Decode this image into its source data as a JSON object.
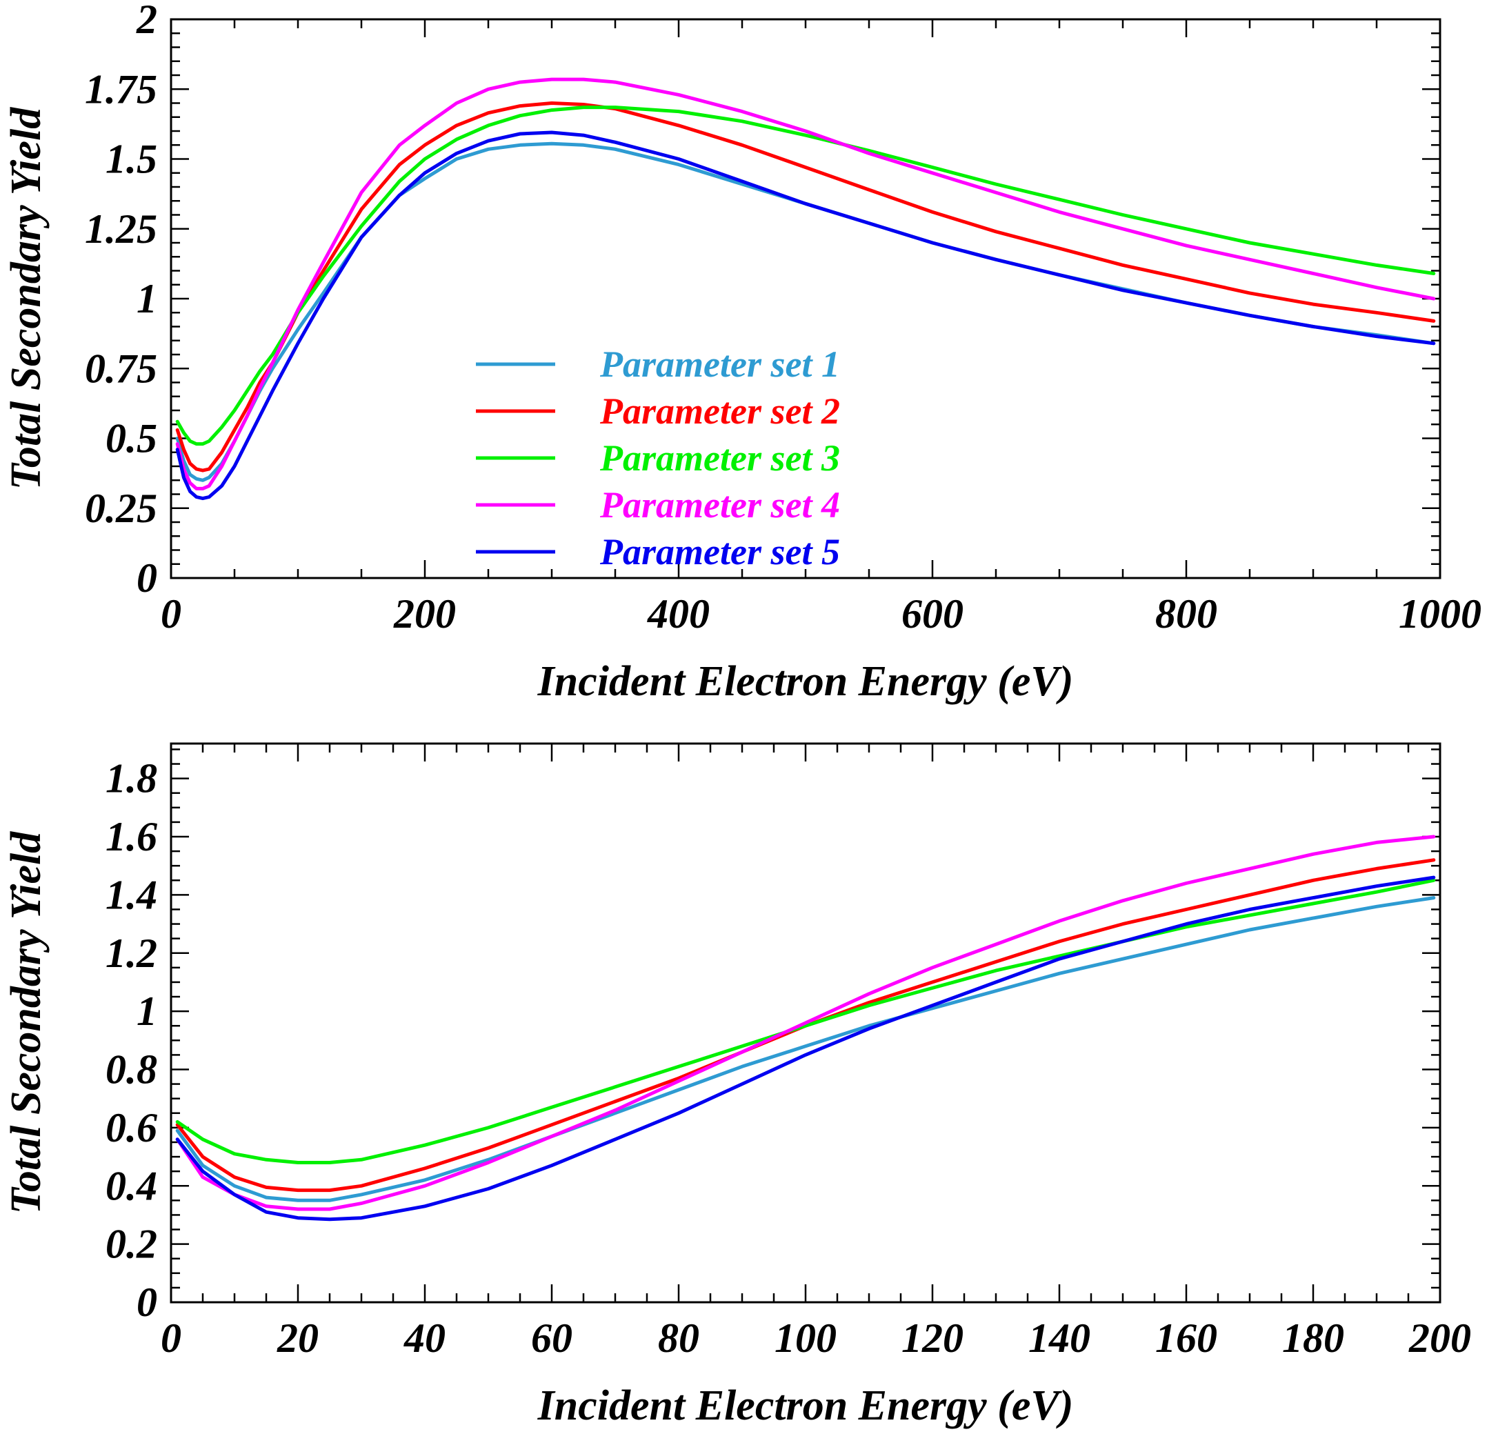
{
  "chart_data": [
    {
      "type": "line",
      "xlabel": "Incident Electron Energy (eV)",
      "ylabel": "Total Secondary Yield",
      "xlim": [
        0,
        1000
      ],
      "ylim": [
        0,
        2
      ],
      "x_ticks": [
        "0",
        "200",
        "400",
        "600",
        "800",
        "1000"
      ],
      "x_tick_values": [
        0,
        200,
        400,
        600,
        800,
        1000
      ],
      "y_ticks": [
        "0",
        "0.25",
        "0.5",
        "0.75",
        "1",
        "1.25",
        "1.5",
        "1.75",
        "2"
      ],
      "y_tick_values": [
        0,
        0.25,
        0.5,
        0.75,
        1,
        1.25,
        1.5,
        1.75,
        2
      ],
      "x_minor_step": 50,
      "y_minor_step": 0.05,
      "grid": false,
      "legend_position": "center-left",
      "series": [
        {
          "name": "Parameter set 1",
          "color": "#2E9BD2",
          "x": [
            5,
            10,
            15,
            20,
            25,
            30,
            40,
            50,
            60,
            70,
            80,
            100,
            120,
            150,
            180,
            200,
            225,
            250,
            275,
            300,
            325,
            350,
            400,
            450,
            500,
            550,
            600,
            650,
            700,
            750,
            800,
            850,
            900,
            950,
            995
          ],
          "y": [
            0.5,
            0.42,
            0.37,
            0.355,
            0.35,
            0.36,
            0.41,
            0.49,
            0.58,
            0.67,
            0.75,
            0.89,
            1.02,
            1.22,
            1.37,
            1.43,
            1.5,
            1.535,
            1.55,
            1.555,
            1.55,
            1.535,
            1.48,
            1.41,
            1.34,
            1.27,
            1.2,
            1.14,
            1.085,
            1.035,
            0.985,
            0.94,
            0.9,
            0.87,
            0.84
          ]
        },
        {
          "name": "Parameter set 2",
          "color": "#FF0000",
          "x": [
            5,
            10,
            15,
            20,
            25,
            30,
            40,
            50,
            60,
            70,
            80,
            100,
            120,
            150,
            180,
            200,
            225,
            250,
            275,
            300,
            325,
            350,
            400,
            450,
            500,
            550,
            600,
            650,
            700,
            750,
            800,
            850,
            900,
            950,
            995
          ],
          "y": [
            0.53,
            0.46,
            0.41,
            0.39,
            0.385,
            0.39,
            0.45,
            0.53,
            0.61,
            0.7,
            0.77,
            0.95,
            1.1,
            1.32,
            1.48,
            1.55,
            1.62,
            1.665,
            1.69,
            1.7,
            1.695,
            1.68,
            1.62,
            1.55,
            1.47,
            1.39,
            1.31,
            1.24,
            1.18,
            1.12,
            1.07,
            1.02,
            0.98,
            0.95,
            0.92
          ]
        },
        {
          "name": "Parameter set 3",
          "color": "#00F000",
          "x": [
            5,
            10,
            15,
            20,
            25,
            30,
            40,
            50,
            60,
            70,
            80,
            100,
            120,
            150,
            180,
            200,
            225,
            250,
            275,
            300,
            325,
            350,
            400,
            450,
            500,
            550,
            600,
            650,
            700,
            750,
            800,
            850,
            900,
            950,
            995
          ],
          "y": [
            0.56,
            0.52,
            0.49,
            0.48,
            0.48,
            0.49,
            0.54,
            0.6,
            0.67,
            0.74,
            0.8,
            0.95,
            1.08,
            1.26,
            1.42,
            1.5,
            1.57,
            1.62,
            1.655,
            1.675,
            1.685,
            1.685,
            1.67,
            1.635,
            1.585,
            1.53,
            1.47,
            1.41,
            1.355,
            1.3,
            1.25,
            1.2,
            1.16,
            1.12,
            1.09
          ]
        },
        {
          "name": "Parameter set 4",
          "color": "#FF00FF",
          "x": [
            5,
            10,
            15,
            20,
            25,
            30,
            40,
            50,
            60,
            70,
            80,
            100,
            120,
            150,
            180,
            200,
            225,
            250,
            275,
            300,
            325,
            350,
            400,
            450,
            500,
            550,
            600,
            650,
            700,
            750,
            800,
            850,
            900,
            950,
            995
          ],
          "y": [
            0.48,
            0.39,
            0.34,
            0.32,
            0.32,
            0.33,
            0.4,
            0.49,
            0.58,
            0.68,
            0.77,
            0.96,
            1.13,
            1.38,
            1.55,
            1.62,
            1.7,
            1.75,
            1.775,
            1.785,
            1.785,
            1.775,
            1.73,
            1.67,
            1.6,
            1.52,
            1.45,
            1.38,
            1.31,
            1.25,
            1.19,
            1.14,
            1.09,
            1.04,
            1.0
          ]
        },
        {
          "name": "Parameter set 5",
          "color": "#0000F0",
          "x": [
            5,
            10,
            15,
            20,
            25,
            30,
            40,
            50,
            60,
            70,
            80,
            100,
            120,
            150,
            180,
            200,
            225,
            250,
            275,
            300,
            325,
            350,
            400,
            450,
            500,
            550,
            600,
            650,
            700,
            750,
            800,
            850,
            900,
            950,
            995
          ],
          "y": [
            0.46,
            0.36,
            0.31,
            0.29,
            0.285,
            0.29,
            0.33,
            0.4,
            0.49,
            0.58,
            0.67,
            0.84,
            1.0,
            1.22,
            1.37,
            1.45,
            1.52,
            1.565,
            1.59,
            1.595,
            1.585,
            1.56,
            1.5,
            1.42,
            1.34,
            1.27,
            1.2,
            1.14,
            1.085,
            1.03,
            0.985,
            0.94,
            0.9,
            0.865,
            0.84
          ]
        }
      ]
    },
    {
      "type": "line",
      "xlabel": "Incident Electron Energy (eV)",
      "ylabel": "Total Secondary Yield",
      "xlim": [
        0,
        200
      ],
      "ylim": [
        0,
        1.92
      ],
      "x_ticks": [
        "0",
        "20",
        "40",
        "60",
        "80",
        "100",
        "120",
        "140",
        "160",
        "180",
        "200"
      ],
      "x_tick_values": [
        0,
        20,
        40,
        60,
        80,
        100,
        120,
        140,
        160,
        180,
        200
      ],
      "y_ticks": [
        "0",
        "0.2",
        "0.4",
        "0.6",
        "0.8",
        "1",
        "1.2",
        "1.4",
        "1.6",
        "1.8"
      ],
      "y_tick_values": [
        0,
        0.2,
        0.4,
        0.6,
        0.8,
        1,
        1.2,
        1.4,
        1.6,
        1.8
      ],
      "x_minor_step": 5,
      "y_minor_step": 0.05,
      "grid": false,
      "legend_position": "none",
      "series": [
        {
          "name": "Parameter set 1",
          "color": "#2E9BD2",
          "x": [
            1,
            5,
            10,
            15,
            20,
            25,
            30,
            40,
            50,
            60,
            70,
            80,
            90,
            100,
            110,
            120,
            130,
            140,
            150,
            160,
            170,
            180,
            190,
            199
          ],
          "y": [
            0.59,
            0.47,
            0.4,
            0.36,
            0.35,
            0.35,
            0.37,
            0.42,
            0.49,
            0.57,
            0.65,
            0.73,
            0.81,
            0.88,
            0.95,
            1.01,
            1.07,
            1.13,
            1.18,
            1.23,
            1.28,
            1.32,
            1.36,
            1.39
          ]
        },
        {
          "name": "Parameter set 2",
          "color": "#FF0000",
          "x": [
            1,
            5,
            10,
            15,
            20,
            25,
            30,
            40,
            50,
            60,
            70,
            80,
            90,
            100,
            110,
            120,
            130,
            140,
            150,
            160,
            170,
            180,
            190,
            199
          ],
          "y": [
            0.61,
            0.5,
            0.43,
            0.395,
            0.385,
            0.385,
            0.4,
            0.46,
            0.53,
            0.61,
            0.69,
            0.77,
            0.86,
            0.95,
            1.03,
            1.1,
            1.17,
            1.24,
            1.3,
            1.35,
            1.4,
            1.45,
            1.49,
            1.52
          ]
        },
        {
          "name": "Parameter set 3",
          "color": "#00F000",
          "x": [
            1,
            5,
            10,
            15,
            20,
            25,
            30,
            40,
            50,
            60,
            70,
            80,
            90,
            100,
            110,
            120,
            130,
            140,
            150,
            160,
            170,
            180,
            190,
            199
          ],
          "y": [
            0.62,
            0.56,
            0.51,
            0.49,
            0.48,
            0.48,
            0.49,
            0.54,
            0.6,
            0.67,
            0.74,
            0.81,
            0.88,
            0.95,
            1.02,
            1.08,
            1.14,
            1.19,
            1.24,
            1.29,
            1.33,
            1.37,
            1.41,
            1.45
          ]
        },
        {
          "name": "Parameter set 4",
          "color": "#FF00FF",
          "x": [
            1,
            5,
            10,
            15,
            20,
            25,
            30,
            40,
            50,
            60,
            70,
            80,
            90,
            100,
            110,
            120,
            130,
            140,
            150,
            160,
            170,
            180,
            190,
            199
          ],
          "y": [
            0.56,
            0.43,
            0.37,
            0.33,
            0.32,
            0.32,
            0.34,
            0.4,
            0.48,
            0.57,
            0.66,
            0.76,
            0.86,
            0.96,
            1.06,
            1.15,
            1.23,
            1.31,
            1.38,
            1.44,
            1.49,
            1.54,
            1.58,
            1.6
          ]
        },
        {
          "name": "Parameter set 5",
          "color": "#0000F0",
          "x": [
            1,
            5,
            10,
            15,
            20,
            25,
            30,
            40,
            50,
            60,
            70,
            80,
            90,
            100,
            110,
            120,
            130,
            140,
            150,
            160,
            170,
            180,
            190,
            199
          ],
          "y": [
            0.56,
            0.45,
            0.37,
            0.31,
            0.29,
            0.285,
            0.29,
            0.33,
            0.39,
            0.47,
            0.56,
            0.65,
            0.75,
            0.85,
            0.94,
            1.02,
            1.1,
            1.18,
            1.24,
            1.3,
            1.35,
            1.39,
            1.43,
            1.46
          ]
        }
      ]
    }
  ]
}
